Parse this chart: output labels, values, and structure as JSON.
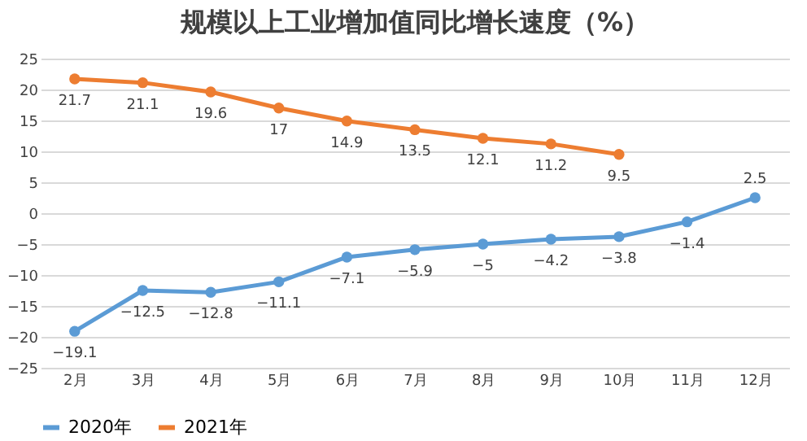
{
  "chart_data": {
    "type": "line",
    "title": "规模以上工业增加值同比增长速度（%）",
    "categories": [
      "2月",
      "3月",
      "4月",
      "5月",
      "6月",
      "7月",
      "8月",
      "9月",
      "10月",
      "11月",
      "12月"
    ],
    "series": [
      {
        "name": "2020年",
        "color": "#5b9bd5",
        "values": [
          -19.1,
          -12.5,
          -12.8,
          -11.1,
          -7.1,
          -5.9,
          -5,
          -4.2,
          -3.8,
          -1.4,
          2.5
        ]
      },
      {
        "name": "2021年",
        "color": "#ed7d31",
        "values": [
          21.7,
          21.1,
          19.6,
          17.0,
          14.9,
          13.5,
          12.1,
          11.2,
          9.5,
          null,
          null
        ]
      }
    ],
    "ylim": [
      -25,
      25
    ],
    "yticks": [
      -25,
      -20,
      -15,
      -10,
      -5,
      0,
      5,
      10,
      15,
      20,
      25
    ],
    "grid": "y",
    "legend": "bottom",
    "marker": "circle",
    "line_style": "solid",
    "data_labels": true
  }
}
